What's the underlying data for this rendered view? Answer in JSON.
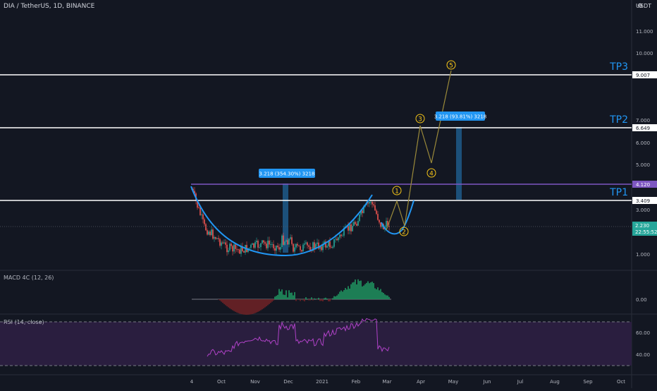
{
  "header": {
    "symbol_title": "DIA / TetherUS, 1D, BINANCE",
    "currency": "USDT",
    "settings_icon": "gear-icon"
  },
  "chart_data": [
    {
      "type": "candlestick",
      "pane": "price",
      "price_axis": {
        "scale": "log",
        "ticks": [
          "11.000",
          "10.000",
          "9.007",
          "7.000",
          "6.649",
          "6.000",
          "5.000",
          "4.120",
          "3.409",
          "3.000",
          "2.230",
          "2.000",
          "1.000"
        ],
        "last_price": "2.230",
        "countdown": "22:55:52"
      },
      "horizontal_lines": [
        {
          "label": "TP3",
          "price": "9.007"
        },
        {
          "label": "TP2",
          "price": "6.649"
        },
        {
          "label": "TP1",
          "price": "3.409"
        },
        {
          "label": "",
          "price": "4.120"
        }
      ],
      "measure_labels": [
        "3.218 (354.30%) 3218",
        "3.218 (93.81%) 3218"
      ],
      "wave_labels": [
        "1",
        "2",
        "3",
        "4",
        "5"
      ],
      "x_axis_ticks": [
        "4",
        "Oct",
        "Nov",
        "Dec",
        "2021",
        "Feb",
        "Mar",
        "Apr",
        "May",
        "Jun",
        "Jul",
        "Aug",
        "Sep",
        "Oct"
      ]
    },
    {
      "type": "bar",
      "pane": "indicator",
      "title": "MACD 4C (12, 26)",
      "axis_ticks": [
        "0.00"
      ]
    },
    {
      "type": "line",
      "pane": "indicator",
      "title": "RSI (14, close)",
      "axis_ticks": [
        "60.00",
        "40.00"
      ]
    }
  ],
  "colors": {
    "background": "#131722",
    "up": "#26a69a",
    "down": "#ef5350",
    "cup_curve": "#2196f3",
    "wave_path": "#9b8a3a",
    "resistance": "#7e57c2",
    "rsi_line": "#b042c8",
    "last_price_badge": "#26a69a"
  }
}
